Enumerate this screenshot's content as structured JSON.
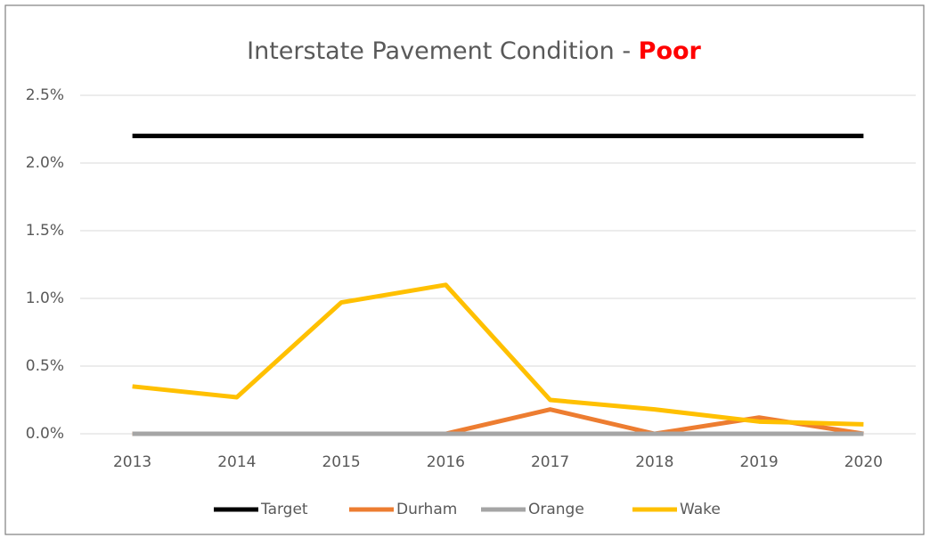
{
  "chart_data": {
    "type": "line",
    "title_parts": [
      "Interstate Pavement Condition - ",
      "Poor"
    ],
    "title_colors": [
      "#595959",
      "#ff0000"
    ],
    "categories": [
      "2013",
      "2014",
      "2015",
      "2016",
      "2017",
      "2018",
      "2019",
      "2020"
    ],
    "series": [
      {
        "name": "Target",
        "color": "#000000",
        "values": [
          2.2,
          2.2,
          2.2,
          2.2,
          2.2,
          2.2,
          2.2,
          2.2
        ]
      },
      {
        "name": "Durham",
        "color": "#ed7d31",
        "values": [
          0,
          0,
          0,
          0,
          0.18,
          0,
          0.12,
          0
        ]
      },
      {
        "name": "Orange",
        "color": "#a5a5a5",
        "values": [
          0,
          0,
          0,
          0,
          0,
          0,
          0,
          0
        ]
      },
      {
        "name": "Wake",
        "color": "#ffc000",
        "values": [
          0.35,
          0.27,
          0.97,
          1.1,
          0.25,
          0.18,
          0.09,
          0.07
        ]
      }
    ],
    "ylim": [
      0,
      2.5
    ],
    "yticks": [
      {
        "value": 0,
        "label": "0.0%"
      },
      {
        "value": 0.5,
        "label": "0.5%"
      },
      {
        "value": 1,
        "label": "1.0%"
      },
      {
        "value": 1.5,
        "label": "1.5%"
      },
      {
        "value": 2,
        "label": "2.0%"
      },
      {
        "value": 2.5,
        "label": "2.5%"
      }
    ],
    "grid": true,
    "legend": "bottom"
  }
}
